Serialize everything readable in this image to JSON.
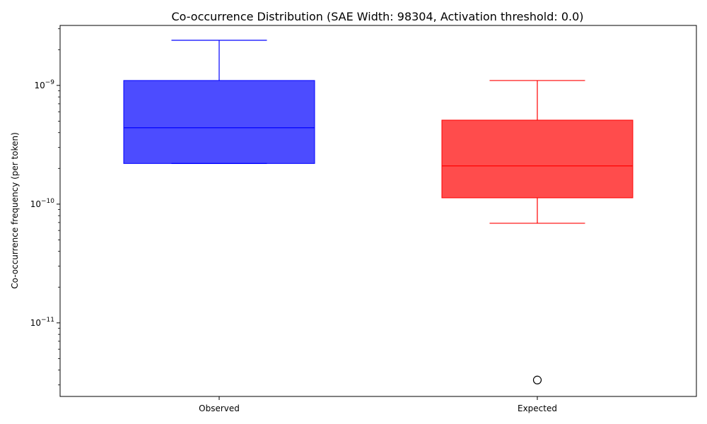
{
  "chart_data": {
    "type": "box",
    "title": "Co-occurrence Distribution (SAE Width: 98304, Activation threshold: 0.0)",
    "xlabel": "",
    "ylabel": "Co-occurrence frequency (per token)",
    "yscale": "log",
    "ylim": [
      2.4e-12,
      3.2e-09
    ],
    "y_ticks": [
      {
        "value": 1e-09,
        "base": "10",
        "exp": "−9"
      },
      {
        "value": 1e-10,
        "base": "10",
        "exp": "−10"
      },
      {
        "value": 1e-11,
        "base": "10",
        "exp": "−11"
      }
    ],
    "categories": [
      "Observed",
      "Expected"
    ],
    "boxes": [
      {
        "name": "Observed",
        "color": "#0000ff",
        "fill_opacity": 0.7,
        "whisker_low": 2.2e-10,
        "q1": 2.2e-10,
        "median": 4.4e-10,
        "q3": 1.1e-09,
        "whisker_high": 2.4e-09,
        "outliers": []
      },
      {
        "name": "Expected",
        "color": "#ff0000",
        "fill_opacity": 0.7,
        "whisker_low": 6.9e-11,
        "q1": 1.13e-10,
        "median": 2.1e-10,
        "q3": 5.1e-10,
        "whisker_high": 1.1e-09,
        "outliers": [
          3.3e-12
        ]
      }
    ],
    "grid": false,
    "legend": "none"
  }
}
